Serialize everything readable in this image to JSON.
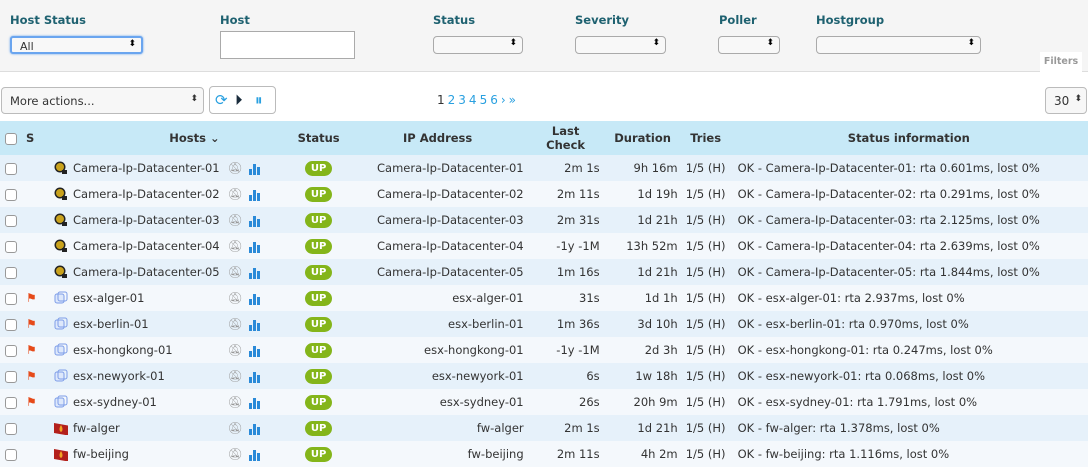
{
  "filters": {
    "host_status_label": "Host Status",
    "host_status_value": "All",
    "host_label": "Host",
    "host_value": "",
    "status_label": "Status",
    "severity_label": "Severity",
    "poller_label": "Poller",
    "hostgroup_label": "Hostgroup",
    "filters_button": "Filters"
  },
  "toolbar": {
    "more_actions": "More actions...",
    "refresh_icon": "refresh-icon",
    "play_icon": "play-icon",
    "pause_icon": "pause-icon",
    "pages": [
      "1",
      "2",
      "3",
      "4",
      "5",
      "6"
    ],
    "current_page": "1",
    "next": "›",
    "last": "»",
    "per_page": "30"
  },
  "columns": {
    "s": "S",
    "hosts": "Hosts",
    "status": "Status",
    "ip": "IP Address",
    "last_check": "Last Check",
    "duration": "Duration",
    "tries": "Tries",
    "info": "Status information"
  },
  "colors": {
    "up": "#84b51a",
    "header": "#c7e9f7",
    "filter_label": "#1e6170",
    "link": "#29a0e0"
  },
  "rows": [
    {
      "host": "Camera-Ip-Datacenter-01",
      "icon": "camera",
      "flag": false,
      "status": "UP",
      "ip": "Camera-Ip-Datacenter-01",
      "last_check": "2m 1s",
      "duration": "9h 16m",
      "tries": "1/5 (H)",
      "info": "OK - Camera-Ip-Datacenter-01: rta 0.601ms, lost 0%"
    },
    {
      "host": "Camera-Ip-Datacenter-02",
      "icon": "camera",
      "flag": false,
      "status": "UP",
      "ip": "Camera-Ip-Datacenter-02",
      "last_check": "2m 11s",
      "duration": "1d 19h",
      "tries": "1/5 (H)",
      "info": "OK - Camera-Ip-Datacenter-02: rta 0.291ms, lost 0%"
    },
    {
      "host": "Camera-Ip-Datacenter-03",
      "icon": "camera",
      "flag": false,
      "status": "UP",
      "ip": "Camera-Ip-Datacenter-03",
      "last_check": "2m 31s",
      "duration": "1d 21h",
      "tries": "1/5 (H)",
      "info": "OK - Camera-Ip-Datacenter-03: rta 2.125ms, lost 0%"
    },
    {
      "host": "Camera-Ip-Datacenter-04",
      "icon": "camera",
      "flag": false,
      "status": "UP",
      "ip": "Camera-Ip-Datacenter-04",
      "last_check": "-1y -1M",
      "duration": "13h 52m",
      "tries": "1/5 (H)",
      "info": "OK - Camera-Ip-Datacenter-04: rta 2.639ms, lost 0%"
    },
    {
      "host": "Camera-Ip-Datacenter-05",
      "icon": "camera",
      "flag": false,
      "status": "UP",
      "ip": "Camera-Ip-Datacenter-05",
      "last_check": "1m 16s",
      "duration": "1d 21h",
      "tries": "1/5 (H)",
      "info": "OK - Camera-Ip-Datacenter-05: rta 1.844ms, lost 0%"
    },
    {
      "host": "esx-alger-01",
      "icon": "vm",
      "flag": true,
      "status": "UP",
      "ip": "esx-alger-01",
      "last_check": "31s",
      "duration": "1d 1h",
      "tries": "1/5 (H)",
      "info": "OK - esx-alger-01: rta 2.937ms, lost 0%"
    },
    {
      "host": "esx-berlin-01",
      "icon": "vm",
      "flag": true,
      "status": "UP",
      "ip": "esx-berlin-01",
      "last_check": "1m 36s",
      "duration": "3d 10h",
      "tries": "1/5 (H)",
      "info": "OK - esx-berlin-01: rta 0.970ms, lost 0%"
    },
    {
      "host": "esx-hongkong-01",
      "icon": "vm",
      "flag": true,
      "status": "UP",
      "ip": "esx-hongkong-01",
      "last_check": "-1y -1M",
      "duration": "2d 3h",
      "tries": "1/5 (H)",
      "info": "OK - esx-hongkong-01: rta 0.247ms, lost 0%"
    },
    {
      "host": "esx-newyork-01",
      "icon": "vm",
      "flag": true,
      "status": "UP",
      "ip": "esx-newyork-01",
      "last_check": "6s",
      "duration": "1w 18h",
      "tries": "1/5 (H)",
      "info": "OK - esx-newyork-01: rta 0.068ms, lost 0%"
    },
    {
      "host": "esx-sydney-01",
      "icon": "vm",
      "flag": true,
      "status": "UP",
      "ip": "esx-sydney-01",
      "last_check": "26s",
      "duration": "20h 9m",
      "tries": "1/5 (H)",
      "info": "OK - esx-sydney-01: rta 1.791ms, lost 0%"
    },
    {
      "host": "fw-alger",
      "icon": "firewall",
      "flag": false,
      "status": "UP",
      "ip": "fw-alger",
      "last_check": "2m 1s",
      "duration": "1d 21h",
      "tries": "1/5 (H)",
      "info": "OK - fw-alger: rta 1.378ms, lost 0%"
    },
    {
      "host": "fw-beijing",
      "icon": "firewall",
      "flag": false,
      "status": "UP",
      "ip": "fw-beijing",
      "last_check": "2m 11s",
      "duration": "4h 2m",
      "tries": "1/5 (H)",
      "info": "OK - fw-beijing: rta 1.116ms, lost 0%"
    }
  ]
}
